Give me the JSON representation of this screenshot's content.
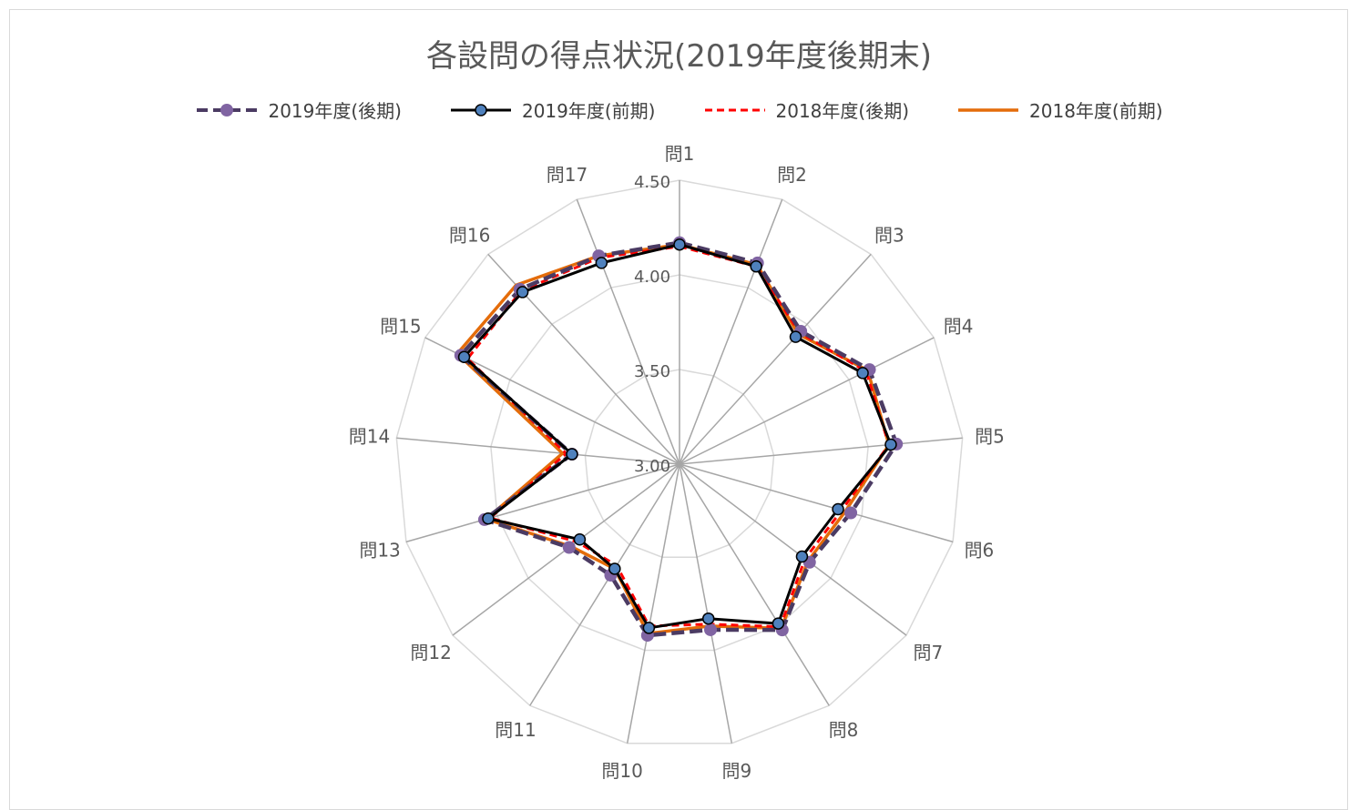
{
  "chart_data": {
    "type": "radar",
    "title": "各設問の得点状況(2019年度後期末)",
    "axes": [
      "問1",
      "問2",
      "問3",
      "問4",
      "問5",
      "問6",
      "問7",
      "問8",
      "問9",
      "問10",
      "問11",
      "問12",
      "問13",
      "問14",
      "問15",
      "問16",
      "問17"
    ],
    "ticks": [
      "3.00",
      "3.50",
      "4.00",
      "4.50"
    ],
    "range": [
      3.0,
      4.5
    ],
    "grid": true,
    "legend_position": "top",
    "series": [
      {
        "name": "2019年度(後期)",
        "color": "#4b3b63",
        "marker_color": "#8064a2",
        "style": "dashed-marker",
        "values": [
          4.17,
          4.14,
          3.95,
          4.12,
          4.15,
          3.94,
          3.86,
          4.03,
          3.89,
          3.92,
          3.69,
          3.73,
          4.07,
          3.57,
          4.29,
          4.25,
          4.18
        ]
      },
      {
        "name": "2019年度(前期)",
        "color": "#000000",
        "marker_color": "#4f81bd",
        "style": "solid-marker",
        "values": [
          4.16,
          4.12,
          3.91,
          4.08,
          4.12,
          3.87,
          3.81,
          3.99,
          3.83,
          3.88,
          3.65,
          3.66,
          4.05,
          3.57,
          4.27,
          4.23,
          4.14
        ]
      },
      {
        "name": "2018年度(後期)",
        "color": "#ff0000",
        "style": "dashed",
        "values": [
          4.15,
          4.12,
          3.94,
          4.1,
          4.11,
          3.89,
          3.83,
          4.01,
          3.86,
          3.87,
          3.63,
          3.68,
          4.04,
          3.6,
          4.25,
          4.24,
          4.17
        ]
      },
      {
        "name": "2018年度(前期)",
        "color": "#e46c0a",
        "style": "solid",
        "values": [
          4.16,
          4.13,
          3.93,
          4.11,
          4.11,
          3.91,
          3.85,
          4.02,
          3.87,
          3.91,
          3.65,
          3.72,
          4.06,
          3.62,
          4.31,
          4.28,
          4.18
        ]
      }
    ]
  }
}
